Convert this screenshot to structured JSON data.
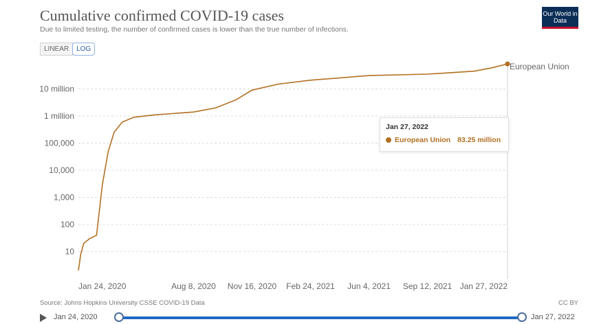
{
  "header": {
    "title": "Cumulative confirmed COVID-19 cases",
    "subtitle": "Due to limited testing, the number of confirmed cases is lower than the true number of infections.",
    "logo_text": "Our World in Data"
  },
  "scale_toggle": {
    "linear_label": "LINEAR",
    "log_label": "LOG",
    "selected": "LOG"
  },
  "tooltip": {
    "date": "Jan 27, 2022",
    "series_name": "European Union",
    "value_text": "83.25 million"
  },
  "footer": {
    "source": "Source: Johns Hopkins University CSSE COVID-19 Data",
    "license": "CC BY"
  },
  "timeline": {
    "start_label": "Jan 24, 2020",
    "end_label": "Jan 27, 2022"
  },
  "colors": {
    "series": "#b26f21",
    "grid": "#dcdcdc"
  },
  "chart_data": {
    "type": "line",
    "title": "Cumulative confirmed COVID-19 cases",
    "yscale": "log",
    "ylim": [
      1,
      100000000
    ],
    "ytick_values": [
      10,
      100,
      1000,
      10000,
      100000,
      1000000,
      10000000
    ],
    "ytick_labels": [
      "10",
      "100",
      "1,000",
      "10,000",
      "100,000",
      "1 million",
      "10 million"
    ],
    "x_start": "2020-01-24",
    "x_end": "2022-01-27",
    "xtick_dates": [
      "2020-01-24",
      "2020-08-08",
      "2020-11-16",
      "2021-02-24",
      "2021-06-04",
      "2021-09-12",
      "2022-01-27"
    ],
    "xtick_labels": [
      "Jan 24, 2020",
      "Aug 8, 2020",
      "Nov 16, 2020",
      "Feb 24, 2021",
      "Jun 4, 2021",
      "Sep 12, 2021",
      "Jan 27, 2022"
    ],
    "series": [
      {
        "name": "European Union",
        "points": [
          [
            "2020-01-24",
            2
          ],
          [
            "2020-01-28",
            8
          ],
          [
            "2020-02-02",
            20
          ],
          [
            "2020-02-12",
            30
          ],
          [
            "2020-02-24",
            40
          ],
          [
            "2020-03-05",
            3000
          ],
          [
            "2020-03-15",
            50000
          ],
          [
            "2020-03-25",
            250000
          ],
          [
            "2020-04-08",
            600000
          ],
          [
            "2020-04-28",
            900000
          ],
          [
            "2020-06-01",
            1100000
          ],
          [
            "2020-08-08",
            1400000
          ],
          [
            "2020-09-15",
            2000000
          ],
          [
            "2020-10-20",
            4000000
          ],
          [
            "2020-11-16",
            9000000
          ],
          [
            "2020-12-31",
            15000000
          ],
          [
            "2021-02-24",
            21000000
          ],
          [
            "2021-06-04",
            31000000
          ],
          [
            "2021-09-12",
            35000000
          ],
          [
            "2021-12-01",
            45000000
          ],
          [
            "2021-12-31",
            60000000
          ],
          [
            "2022-01-27",
            83250000
          ]
        ]
      }
    ]
  }
}
